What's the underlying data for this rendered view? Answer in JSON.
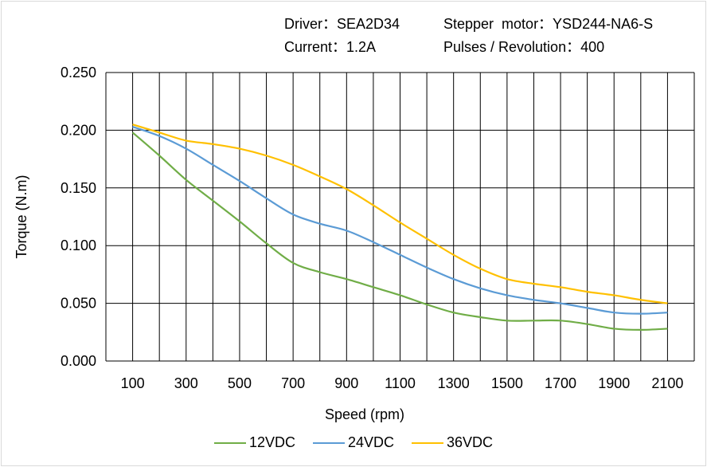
{
  "header": {
    "driver": "Driver：SEA2D34",
    "motor": "Stepper  motor：YSD244-NA6-S",
    "current": "Current：1.2A",
    "pulses": "Pulses / Revolution：400"
  },
  "chart_data": {
    "type": "line",
    "title": "",
    "xlabel": "Speed  (rpm)",
    "ylabel": "Torque (N.m)",
    "xlim": [
      0,
      2200
    ],
    "ylim": [
      0,
      0.25
    ],
    "grid": "vertical lines every 100 rpm, horizontal at y ticks",
    "legend": "bottom",
    "x_ticks": [
      "100",
      "300",
      "500",
      "700",
      "900",
      "1100",
      "1300",
      "1500",
      "1700",
      "1900",
      "2100"
    ],
    "y_ticks": [
      "0.000",
      "0.050",
      "0.100",
      "0.150",
      "0.200",
      "0.250"
    ],
    "x": [
      100,
      200,
      300,
      400,
      500,
      600,
      700,
      800,
      900,
      1000,
      1100,
      1200,
      1300,
      1400,
      1500,
      1600,
      1700,
      1800,
      1900,
      2000,
      2100
    ],
    "series": [
      {
        "name": "12VDC",
        "color": "#70ad47",
        "values": [
          0.198,
          0.178,
          0.157,
          0.139,
          0.121,
          0.102,
          0.085,
          0.077,
          0.071,
          0.064,
          0.057,
          0.049,
          0.042,
          0.038,
          0.035,
          0.035,
          0.035,
          0.032,
          0.028,
          0.027,
          0.028
        ]
      },
      {
        "name": "24VDC",
        "color": "#5b9bd5",
        "values": [
          0.203,
          0.195,
          0.184,
          0.17,
          0.156,
          0.141,
          0.127,
          0.119,
          0.113,
          0.103,
          0.092,
          0.081,
          0.071,
          0.063,
          0.057,
          0.053,
          0.05,
          0.046,
          0.042,
          0.041,
          0.042
        ]
      },
      {
        "name": "36VDC",
        "color": "#ffc000",
        "values": [
          0.205,
          0.198,
          0.191,
          0.188,
          0.184,
          0.178,
          0.17,
          0.16,
          0.149,
          0.135,
          0.12,
          0.106,
          0.092,
          0.08,
          0.071,
          0.067,
          0.064,
          0.06,
          0.057,
          0.053,
          0.05
        ]
      }
    ]
  }
}
